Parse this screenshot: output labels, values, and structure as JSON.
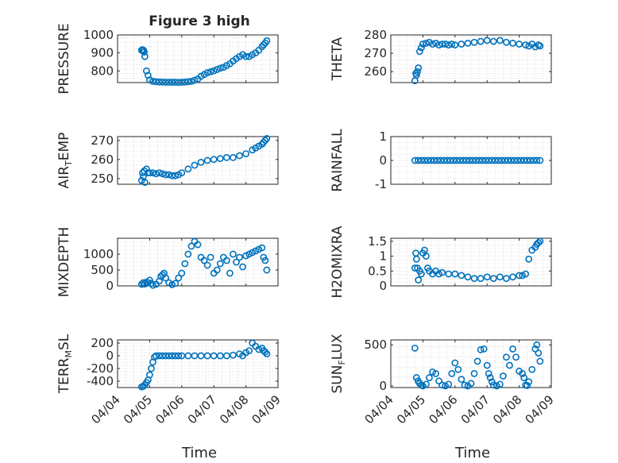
{
  "figure": {
    "title": "Figure 3 high",
    "xlabel": "Time",
    "xticks": [
      "04/04",
      "04/05",
      "04/06",
      "04/07",
      "04/08",
      "04/09"
    ]
  },
  "colors": {
    "marker": "#0072BD",
    "axis": "#262626",
    "grid": "#c8c8c8"
  },
  "chart_data": [
    {
      "type": "scatter",
      "ylabel": "PRESSURE",
      "ylabel_sub": "",
      "ylabel_after": "",
      "ylim": [
        735,
        1000
      ],
      "yticks": [
        800,
        900,
        1000
      ],
      "x": [
        0.75,
        0.77,
        0.79,
        0.81,
        0.83,
        0.85,
        0.9,
        0.95,
        1.0,
        1.1,
        1.2,
        1.3,
        1.4,
        1.5,
        1.6,
        1.7,
        1.8,
        1.9,
        2.0,
        2.1,
        2.2,
        2.3,
        2.4,
        2.5,
        2.6,
        2.7,
        2.8,
        2.9,
        3.0,
        3.1,
        3.2,
        3.3,
        3.4,
        3.5,
        3.6,
        3.7,
        3.8,
        3.9,
        4.0,
        4.1,
        4.2,
        4.3,
        4.4,
        4.5,
        4.55,
        4.6,
        4.65
      ],
      "y": [
        915,
        918,
        912,
        915,
        905,
        880,
        800,
        775,
        750,
        742,
        740,
        738,
        738,
        737,
        737,
        737,
        737,
        736,
        737,
        738,
        740,
        742,
        748,
        755,
        770,
        780,
        790,
        795,
        800,
        808,
        815,
        820,
        830,
        840,
        855,
        868,
        880,
        890,
        880,
        880,
        890,
        900,
        915,
        935,
        945,
        955,
        968
      ]
    },
    {
      "type": "scatter",
      "ylabel": "THETA",
      "ylabel_sub": "",
      "ylabel_after": "",
      "ylim": [
        254,
        280
      ],
      "yticks": [
        260,
        270,
        280
      ],
      "x": [
        0.75,
        0.78,
        0.8,
        0.83,
        0.86,
        0.9,
        0.95,
        1.0,
        1.1,
        1.2,
        1.3,
        1.4,
        1.5,
        1.6,
        1.7,
        1.8,
        1.9,
        2.0,
        2.2,
        2.4,
        2.6,
        2.8,
        3.0,
        3.2,
        3.4,
        3.6,
        3.8,
        4.0,
        4.2,
        4.3,
        4.4,
        4.5,
        4.6,
        4.65
      ],
      "y": [
        255,
        259,
        258,
        260,
        262,
        271,
        273,
        275,
        275.5,
        276,
        275,
        275.5,
        274.5,
        275,
        275,
        274.5,
        275,
        274.5,
        275,
        275.5,
        276,
        276.5,
        277,
        276.5,
        277,
        276,
        275.5,
        275,
        274.5,
        274,
        275,
        273.5,
        274.5,
        274
      ]
    },
    {
      "type": "scatter",
      "ylabel": "AIR",
      "ylabel_sub": "T",
      "ylabel_after": "EMP",
      "ylim": [
        247,
        272
      ],
      "yticks": [
        250,
        260,
        270
      ],
      "x": [
        0.75,
        0.78,
        0.8,
        0.83,
        0.85,
        0.9,
        0.95,
        1.0,
        1.1,
        1.2,
        1.3,
        1.4,
        1.5,
        1.6,
        1.7,
        1.8,
        1.9,
        2.0,
        2.2,
        2.4,
        2.6,
        2.8,
        3.0,
        3.2,
        3.4,
        3.6,
        3.8,
        4.0,
        4.2,
        4.3,
        4.4,
        4.5,
        4.55,
        4.6,
        4.65
      ],
      "y": [
        249,
        253,
        251,
        254,
        248,
        255,
        253,
        253,
        253,
        252.5,
        253,
        252.5,
        252,
        252,
        251.5,
        251.5,
        252,
        253,
        255,
        257,
        258.5,
        259.5,
        260,
        260.5,
        261,
        261,
        262,
        263,
        265,
        266,
        267,
        268,
        269,
        270,
        271
      ]
    },
    {
      "type": "scatter",
      "ylabel": "RAINFALL",
      "ylabel_sub": "",
      "ylabel_after": "",
      "ylim": [
        -1,
        1
      ],
      "yticks": [
        -1,
        0,
        1
      ],
      "x": [
        0.75,
        0.85,
        0.95,
        1.05,
        1.15,
        1.25,
        1.35,
        1.45,
        1.55,
        1.65,
        1.75,
        1.85,
        1.95,
        2.05,
        2.15,
        2.25,
        2.35,
        2.45,
        2.55,
        2.65,
        2.75,
        2.85,
        2.95,
        3.05,
        3.15,
        3.25,
        3.35,
        3.45,
        3.55,
        3.65,
        3.75,
        3.85,
        3.95,
        4.05,
        4.15,
        4.25,
        4.35,
        4.45,
        4.55,
        4.65
      ],
      "y": [
        0,
        0,
        0,
        0,
        0,
        0,
        0,
        0,
        0,
        0,
        0,
        0,
        0,
        0,
        0,
        0,
        0,
        0,
        0,
        0,
        0,
        0,
        0,
        0,
        0,
        0,
        0,
        0,
        0,
        0,
        0,
        0,
        0,
        0,
        0,
        0,
        0,
        0,
        0,
        0
      ]
    },
    {
      "type": "scatter",
      "ylabel": "MIXDEPTH",
      "ylabel_sub": "",
      "ylabel_after": "",
      "ylim": [
        0,
        1500
      ],
      "yticks": [
        0,
        500,
        1000
      ],
      "x": [
        0.75,
        0.8,
        0.85,
        0.9,
        0.95,
        1.0,
        1.05,
        1.1,
        1.2,
        1.3,
        1.35,
        1.4,
        1.45,
        1.5,
        1.6,
        1.7,
        1.8,
        1.9,
        2.0,
        2.1,
        2.2,
        2.3,
        2.4,
        2.5,
        2.6,
        2.7,
        2.8,
        2.9,
        3.0,
        3.1,
        3.2,
        3.3,
        3.4,
        3.5,
        3.6,
        3.7,
        3.8,
        3.9,
        4.0,
        4.1,
        4.2,
        4.3,
        4.4,
        4.5,
        4.55,
        4.6,
        4.65
      ],
      "y": [
        50,
        100,
        60,
        120,
        100,
        180,
        80,
        20,
        50,
        150,
        300,
        350,
        400,
        250,
        100,
        40,
        80,
        250,
        400,
        700,
        1000,
        1250,
        1400,
        1300,
        900,
        800,
        650,
        900,
        400,
        500,
        700,
        900,
        800,
        400,
        1000,
        750,
        900,
        600,
        950,
        1000,
        1050,
        1100,
        1150,
        1200,
        900,
        800,
        500
      ]
    },
    {
      "type": "scatter",
      "ylabel": "H2OMIXRA",
      "ylabel_sub": "",
      "ylabel_after": "",
      "ylim": [
        0,
        1.6
      ],
      "yticks": [
        0,
        0.5,
        1,
        1.5
      ],
      "x": [
        0.75,
        0.78,
        0.8,
        0.83,
        0.86,
        0.9,
        0.95,
        1.0,
        1.05,
        1.1,
        1.15,
        1.2,
        1.3,
        1.4,
        1.5,
        1.6,
        1.8,
        2.0,
        2.2,
        2.4,
        2.6,
        2.8,
        3.0,
        3.2,
        3.4,
        3.6,
        3.8,
        4.0,
        4.1,
        4.2,
        4.3,
        4.4,
        4.5,
        4.55,
        4.6,
        4.65
      ],
      "y": [
        0.6,
        1.1,
        0.9,
        0.6,
        0.2,
        0.5,
        0.4,
        1.1,
        1.2,
        1.0,
        0.6,
        0.5,
        0.4,
        0.5,
        0.4,
        0.45,
        0.4,
        0.4,
        0.35,
        0.3,
        0.25,
        0.25,
        0.3,
        0.25,
        0.3,
        0.25,
        0.3,
        0.35,
        0.35,
        0.4,
        0.9,
        1.2,
        1.3,
        1.4,
        1.45,
        1.5
      ]
    },
    {
      "type": "scatter",
      "ylabel": "TERR",
      "ylabel_sub": "M",
      "ylabel_after": "SL",
      "ylim": [
        -500,
        250
      ],
      "yticks": [
        -400,
        -200,
        0,
        200
      ],
      "x": [
        0.75,
        0.8,
        0.85,
        0.9,
        0.95,
        1.0,
        1.05,
        1.1,
        1.15,
        1.2,
        1.3,
        1.4,
        1.5,
        1.6,
        1.7,
        1.8,
        1.9,
        2.0,
        2.2,
        2.4,
        2.6,
        2.8,
        3.0,
        3.2,
        3.4,
        3.6,
        3.8,
        3.9,
        4.0,
        4.1,
        4.2,
        4.3,
        4.4,
        4.5,
        4.55,
        4.6,
        4.65
      ],
      "y": [
        -490,
        -480,
        -460,
        -420,
        -380,
        -300,
        -200,
        -100,
        -20,
        0,
        0,
        0,
        0,
        0,
        0,
        0,
        0,
        0,
        0,
        0,
        0,
        0,
        0,
        0,
        0,
        10,
        30,
        0,
        50,
        80,
        200,
        150,
        100,
        120,
        80,
        60,
        30
      ]
    },
    {
      "type": "scatter",
      "ylabel": "SUN",
      "ylabel_sub": "F",
      "ylabel_after": "LUX",
      "ylim": [
        -20,
        560
      ],
      "yticks": [
        0,
        500
      ],
      "x": [
        0.75,
        0.8,
        0.85,
        0.9,
        0.95,
        1.0,
        1.1,
        1.2,
        1.3,
        1.4,
        1.5,
        1.6,
        1.7,
        1.8,
        1.9,
        2.0,
        2.1,
        2.2,
        2.3,
        2.4,
        2.5,
        2.6,
        2.7,
        2.8,
        2.9,
        3.0,
        3.05,
        3.1,
        3.15,
        3.2,
        3.3,
        3.4,
        3.5,
        3.6,
        3.7,
        3.8,
        3.9,
        4.0,
        4.1,
        4.15,
        4.2,
        4.25,
        4.3,
        4.4,
        4.5,
        4.55,
        4.6,
        4.65
      ],
      "y": [
        460,
        100,
        60,
        30,
        10,
        0,
        20,
        100,
        170,
        150,
        60,
        10,
        0,
        20,
        150,
        280,
        200,
        80,
        10,
        0,
        30,
        150,
        300,
        440,
        450,
        250,
        150,
        100,
        50,
        10,
        0,
        20,
        120,
        350,
        250,
        450,
        350,
        180,
        150,
        100,
        10,
        5,
        50,
        200,
        450,
        500,
        400,
        300
      ]
    }
  ]
}
